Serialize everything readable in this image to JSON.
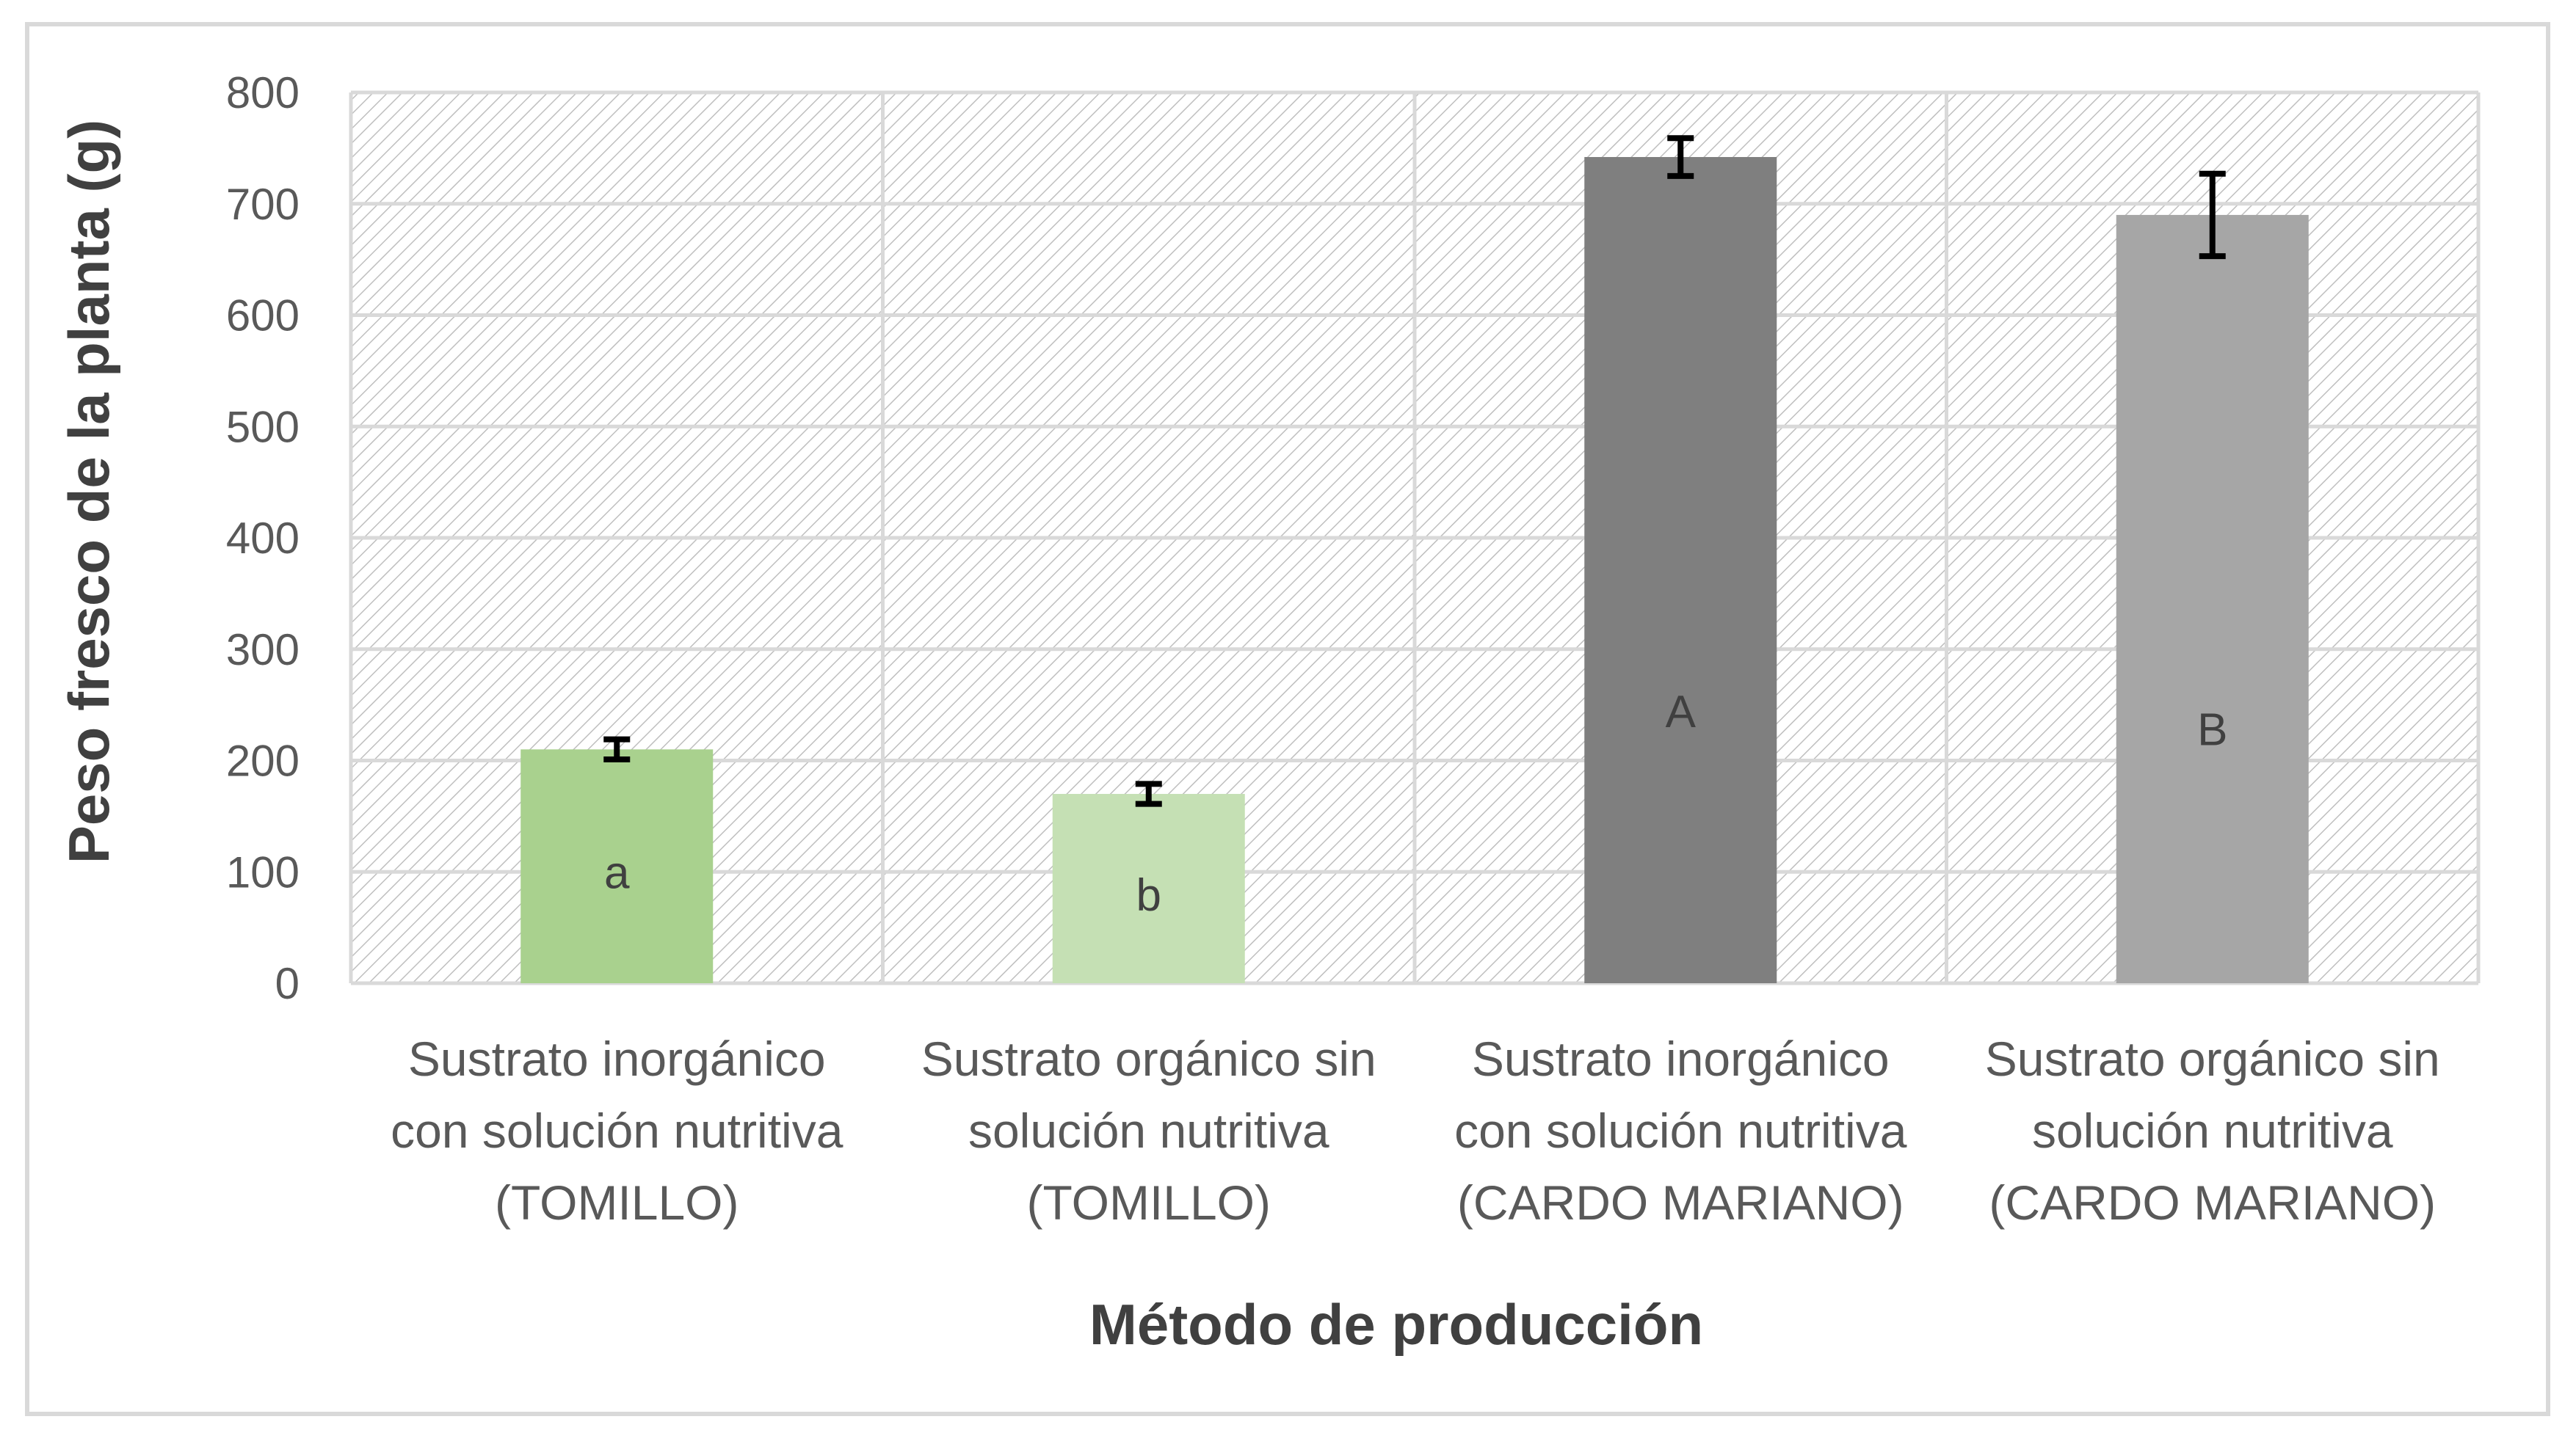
{
  "chart_data": {
    "type": "bar",
    "title": "",
    "xlabel": "Método de producción",
    "ylabel": "Peso fresco de la planta (g)",
    "ylim": [
      0,
      800
    ],
    "yticks": [
      0,
      100,
      200,
      300,
      400,
      500,
      600,
      700,
      800
    ],
    "grid": true,
    "legend": "none",
    "categories": [
      [
        "Sustrato inorgánico",
        "con solución nutritiva",
        "(TOMILLO)"
      ],
      [
        "Sustrato orgánico sin",
        "solución nutritiva",
        "(TOMILLO)"
      ],
      [
        "Sustrato inorgánico",
        "con solución nutritiva",
        "(CARDO MARIANO)"
      ],
      [
        "Sustrato orgánico sin",
        "solución nutritiva",
        "(CARDO MARIANO)"
      ]
    ],
    "values": [
      210,
      170,
      742,
      690
    ],
    "error": [
      9,
      9,
      17,
      37
    ],
    "significance_labels": [
      "a",
      "b",
      "A",
      "B"
    ],
    "bar_colors": [
      "#a9d18e",
      "#c5e0b4",
      "#7f7f7f",
      "#a6a6a6"
    ]
  }
}
